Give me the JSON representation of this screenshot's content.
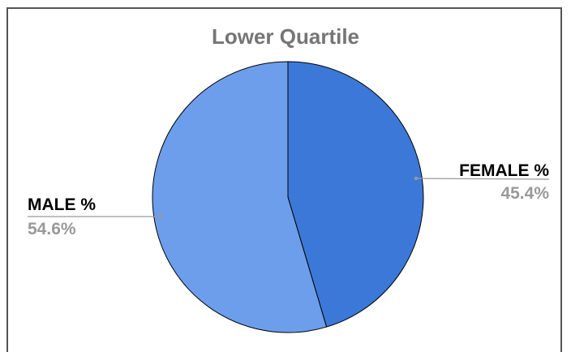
{
  "chart_data": {
    "type": "pie",
    "title": "Lower Quartile",
    "slices": [
      {
        "label": "FEMALE %",
        "value": 45.4,
        "display": "45.4%",
        "color": "#3c78d8"
      },
      {
        "label": "MALE %",
        "value": 54.6,
        "display": "54.6%",
        "color": "#6d9eeb"
      }
    ],
    "start_angle": "12 o'clock",
    "direction": "clockwise",
    "label_color": "#000000",
    "value_color": "#999999",
    "leader_color": "#999999",
    "slice_border_color": "#000000"
  }
}
